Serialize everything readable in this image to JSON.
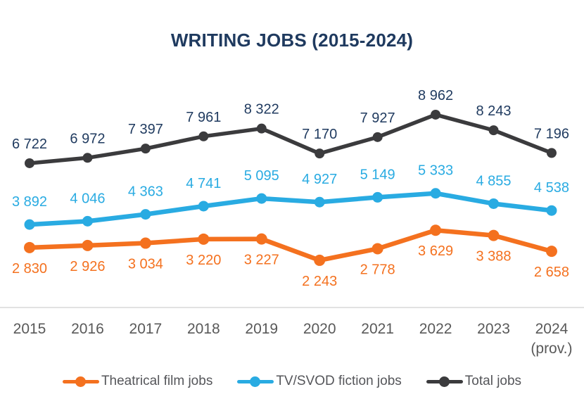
{
  "chart_data": {
    "type": "line",
    "title": "WRITING JOBS (2015-2024)",
    "categories": [
      "2015",
      "2016",
      "2017",
      "2018",
      "2019",
      "2020",
      "2021",
      "2022",
      "2023",
      "2024"
    ],
    "last_category_note": "(prov.)",
    "series": [
      {
        "name": "Theatrical film jobs",
        "color": "#F4711F",
        "label_color": "#F4711F",
        "label_position": "below",
        "values": [
          2830,
          2926,
          3034,
          3220,
          3227,
          2243,
          2778,
          3629,
          3388,
          2658
        ],
        "labels": [
          "2 830",
          "2 926",
          "3 034",
          "3 220",
          "3 227",
          "2 243",
          "2 778",
          "3 629",
          "3 388",
          "2 658"
        ]
      },
      {
        "name": "TV/SVOD fiction jobs",
        "color": "#29ABE2",
        "label_color": "#29ABE2",
        "label_position": "above",
        "values": [
          3892,
          4046,
          4363,
          4741,
          5095,
          4927,
          5149,
          5333,
          4855,
          4538
        ],
        "labels": [
          "3 892",
          "4 046",
          "4 363",
          "4 741",
          "5 095",
          "4 927",
          "5 149",
          "5 333",
          "4 855",
          "4 538"
        ]
      },
      {
        "name": "Total jobs",
        "color": "#3B3B3D",
        "label_color": "#1F3A5F",
        "label_position": "above",
        "values": [
          6722,
          6972,
          7397,
          7961,
          8322,
          7170,
          7927,
          8962,
          8243,
          7196
        ],
        "labels": [
          "6 722",
          "6 972",
          "7 397",
          "7 961",
          "8 322",
          "7 170",
          "7 927",
          "8 962",
          "8 243",
          "7 196"
        ]
      }
    ],
    "xlabel": "",
    "ylabel": "",
    "ylim": [
      0,
      10000
    ],
    "grid": false,
    "legend_position": "bottom",
    "colors": {
      "title": "#1F3A5F",
      "tick": "#595959",
      "legend_text": "#55565A",
      "axis_line": "#D9D9D9",
      "background": "#FFFFFF"
    }
  }
}
